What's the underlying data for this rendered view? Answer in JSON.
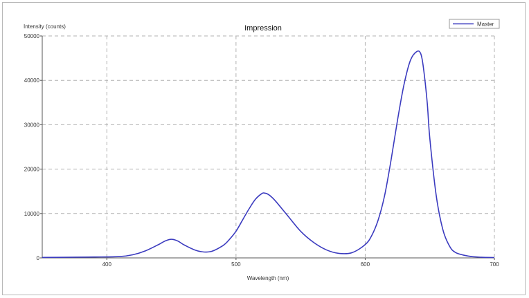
{
  "chart_data": {
    "type": "line",
    "title": "Impression",
    "xlabel": "Wavelength (nm)",
    "ylabel": "Intensity (counts)",
    "xlim": [
      350,
      700
    ],
    "ylim": [
      0,
      50000
    ],
    "x_ticks": [
      400,
      500,
      600,
      700
    ],
    "y_ticks": [
      0,
      10000,
      20000,
      30000,
      40000,
      50000
    ],
    "grid": true,
    "legend_position": "top-right",
    "line_color": "#3b3bbf",
    "series": [
      {
        "name": "Master",
        "x": [
          350,
          370,
          390,
          410,
          420,
          430,
          440,
          445,
          450,
          455,
          460,
          470,
          480,
          490,
          495,
          500,
          505,
          510,
          515,
          520,
          522,
          525,
          530,
          540,
          550,
          560,
          570,
          580,
          590,
          600,
          605,
          610,
          615,
          620,
          625,
          630,
          635,
          640,
          643,
          645,
          648,
          650,
          655,
          660,
          665,
          670,
          680,
          690,
          700
        ],
        "y": [
          100,
          150,
          200,
          300,
          700,
          1600,
          3000,
          3800,
          4200,
          3800,
          2900,
          1600,
          1400,
          2800,
          4200,
          6000,
          8500,
          11000,
          13200,
          14500,
          14600,
          14300,
          13000,
          9500,
          6000,
          3500,
          1800,
          1000,
          1200,
          3000,
          5000,
          8500,
          14000,
          22000,
          31000,
          39000,
          44500,
          46500,
          46000,
          43000,
          35000,
          27000,
          14000,
          6500,
          2800,
          1200,
          400,
          150,
          80
        ]
      }
    ]
  }
}
